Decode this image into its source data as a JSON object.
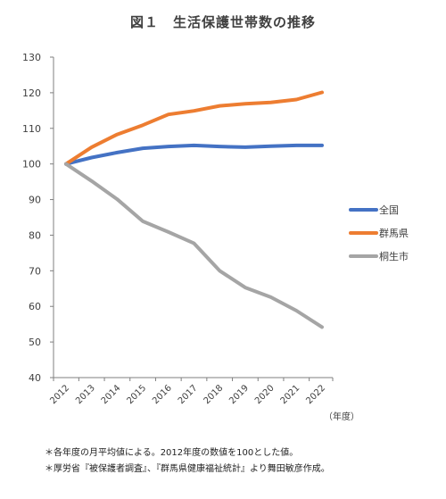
{
  "chart_data": {
    "type": "line",
    "title": "図１　生活保護世帯数の推移",
    "xlabel": "（年度）",
    "ylabel": "",
    "categories": [
      "2012",
      "2013",
      "2014",
      "2015",
      "2016",
      "2017",
      "2018",
      "2019",
      "2020",
      "2021",
      "2022"
    ],
    "ylim": [
      40,
      130
    ],
    "yticks": [
      40,
      50,
      60,
      70,
      80,
      90,
      100,
      110,
      120,
      130
    ],
    "grid": false,
    "legend": "right",
    "series": [
      {
        "name": "全国",
        "color": "#4472C4",
        "values": [
          100,
          101.8,
          103.2,
          104.4,
          104.9,
          105.2,
          104.9,
          104.7,
          105.0,
          105.2,
          105.2
        ]
      },
      {
        "name": "群馬県",
        "color": "#ED7D31",
        "values": [
          100,
          104.7,
          108.3,
          110.9,
          113.9,
          114.9,
          116.3,
          116.9,
          117.3,
          118.1,
          120.1
        ]
      },
      {
        "name": "桐生市",
        "color": "#A5A5A5",
        "values": [
          100,
          95.2,
          90.1,
          83.9,
          80.9,
          77.7,
          70.0,
          65.3,
          62.6,
          58.8,
          54.2
        ]
      }
    ]
  },
  "notes": [
    "＊各年度の月平均値による。2012年度の数値を100とした値。",
    "＊厚労省『被保護者調査』、『群馬県健康福祉統計』より舞田敏彦作成。"
  ]
}
